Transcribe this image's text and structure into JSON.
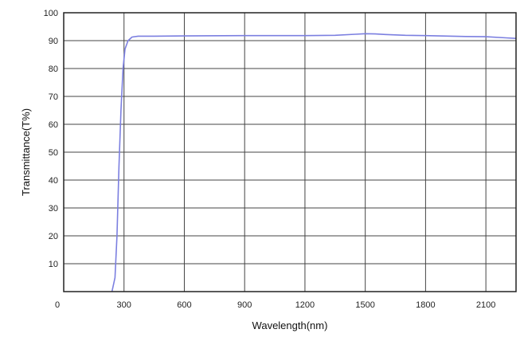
{
  "chart_data": {
    "type": "line",
    "title": "",
    "xlabel": "Wavelength(nm)",
    "ylabel": "Transmittance(T%)",
    "xlim": [
      0,
      2250
    ],
    "ylim": [
      0,
      100
    ],
    "xticks": [
      0,
      300,
      600,
      900,
      1200,
      1500,
      1800,
      2100
    ],
    "yticks": [
      10,
      20,
      30,
      40,
      50,
      60,
      70,
      80,
      90,
      100
    ],
    "grid": true,
    "line_color": "#7b7fe0",
    "series": [
      {
        "x": [
          240,
          255,
          265,
          275,
          285,
          295,
          305,
          320,
          340,
          370,
          450,
          600,
          900,
          1200,
          1350,
          1450,
          1500,
          1550,
          1600,
          1700,
          1800,
          2000,
          2100,
          2200,
          2250
        ],
        "y": [
          0,
          5,
          20,
          45,
          65,
          80,
          87,
          90,
          91.3,
          91.6,
          91.6,
          91.7,
          91.8,
          91.8,
          91.9,
          92.3,
          92.5,
          92.4,
          92.2,
          91.9,
          91.8,
          91.5,
          91.4,
          91.0,
          90.8
        ]
      }
    ]
  }
}
